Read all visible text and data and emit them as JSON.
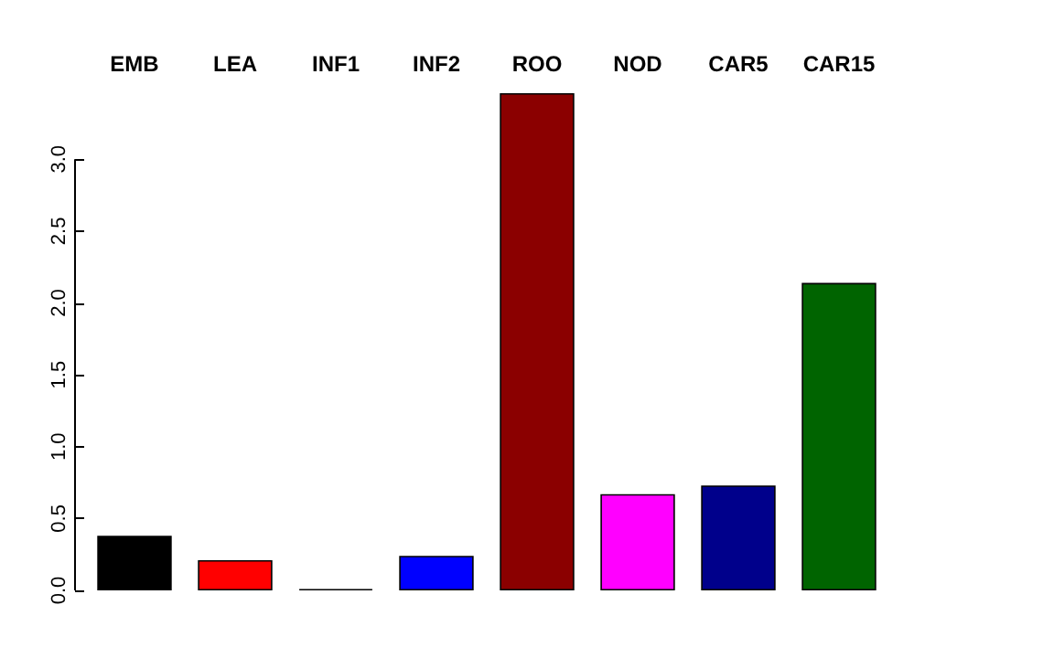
{
  "chart_data": {
    "type": "bar",
    "categories": [
      "EMB",
      "LEA",
      "INF1",
      "INF2",
      "ROO",
      "NOD",
      "CAR5",
      "CAR15"
    ],
    "values": [
      0.38,
      0.21,
      0.01,
      0.24,
      3.46,
      0.67,
      0.73,
      2.14
    ],
    "colors": [
      "#000000",
      "#ff0000",
      "#000000",
      "#0000ff",
      "#8b0000",
      "#ff00ff",
      "#00008b",
      "#006400"
    ],
    "ylim": [
      0,
      3.46
    ],
    "yticks": [
      {
        "value": 0,
        "label": "0.0"
      },
      {
        "value": 0.5,
        "label": "0.5"
      },
      {
        "value": 1,
        "label": "1.0"
      },
      {
        "value": 1.5,
        "label": "1.5"
      },
      {
        "value": 2,
        "label": "2.0"
      },
      {
        "value": 2.5,
        "label": "2.5"
      },
      {
        "value": 3,
        "label": "3.0"
      }
    ],
    "grid": false
  }
}
